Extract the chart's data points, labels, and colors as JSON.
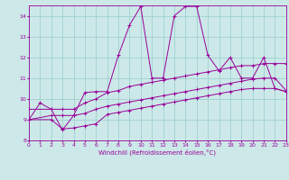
{
  "xlabel": "Windchill (Refroidissement éolien,°C)",
  "xlim": [
    0,
    23
  ],
  "ylim": [
    8,
    14.5
  ],
  "xticks": [
    0,
    1,
    2,
    3,
    4,
    5,
    6,
    7,
    8,
    9,
    10,
    11,
    12,
    13,
    14,
    15,
    16,
    17,
    18,
    19,
    20,
    21,
    22,
    23
  ],
  "yticks": [
    8,
    9,
    10,
    11,
    12,
    13,
    14
  ],
  "bg_color": "#cce8e8",
  "line_color": "#990099",
  "grid_color": "#99cccc",
  "line1_x": [
    0,
    1,
    2,
    3,
    4,
    5,
    6,
    7,
    8,
    9,
    10,
    11,
    12,
    13,
    14,
    15,
    16,
    17,
    18,
    19,
    20,
    21,
    22,
    23
  ],
  "line1_y": [
    9.0,
    9.8,
    9.5,
    8.5,
    9.2,
    10.3,
    10.35,
    10.35,
    12.1,
    13.55,
    14.45,
    11.0,
    11.0,
    14.0,
    14.45,
    14.45,
    12.1,
    11.35,
    12.0,
    11.0,
    11.0,
    12.0,
    10.5,
    10.35
  ],
  "line2_x": [
    0,
    2,
    3,
    4,
    5,
    6,
    7,
    8,
    9,
    10,
    11,
    12,
    13,
    14,
    15,
    16,
    17,
    18,
    19,
    20,
    21,
    22,
    23
  ],
  "line2_y": [
    9.5,
    9.5,
    9.5,
    9.5,
    9.8,
    10.0,
    10.3,
    10.4,
    10.6,
    10.7,
    10.8,
    10.9,
    11.0,
    11.1,
    11.2,
    11.3,
    11.4,
    11.5,
    11.6,
    11.6,
    11.7,
    11.7,
    11.7
  ],
  "line3_x": [
    0,
    2,
    3,
    4,
    5,
    6,
    7,
    8,
    9,
    10,
    11,
    12,
    13,
    14,
    15,
    16,
    17,
    18,
    19,
    20,
    21,
    22,
    23
  ],
  "line3_y": [
    9.0,
    9.2,
    9.2,
    9.2,
    9.3,
    9.5,
    9.65,
    9.75,
    9.85,
    9.95,
    10.05,
    10.15,
    10.25,
    10.35,
    10.45,
    10.55,
    10.65,
    10.75,
    10.85,
    10.95,
    11.0,
    11.0,
    10.4
  ],
  "line4_x": [
    0,
    2,
    3,
    4,
    5,
    6,
    7,
    8,
    9,
    10,
    11,
    12,
    13,
    14,
    15,
    16,
    17,
    18,
    19,
    20,
    21,
    22,
    23
  ],
  "line4_y": [
    9.0,
    9.0,
    8.55,
    8.6,
    8.7,
    8.8,
    9.25,
    9.35,
    9.45,
    9.55,
    9.65,
    9.75,
    9.85,
    9.95,
    10.05,
    10.15,
    10.25,
    10.35,
    10.45,
    10.5,
    10.5,
    10.5,
    10.35
  ]
}
